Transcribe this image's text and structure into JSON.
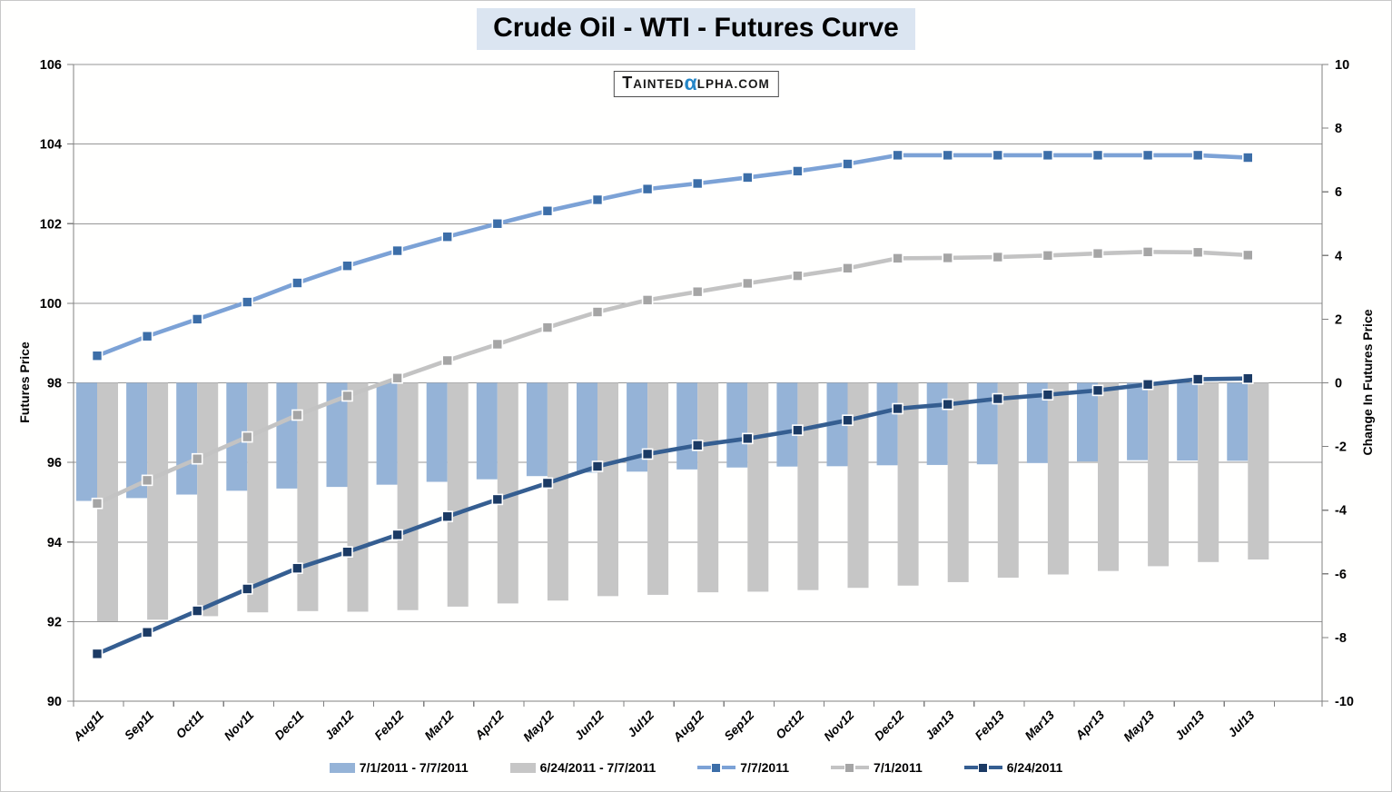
{
  "title": "Crude Oil - WTI - Futures Curve",
  "logo": {
    "lead": "T",
    "body": "AINTED",
    "alpha": "α",
    "tail": "LPHA.COM",
    "alpha_color": "#2586c7"
  },
  "chart_data": {
    "type": "combo-bar-line",
    "grid": true,
    "legend_position": "bottom",
    "categories": [
      "Aug11",
      "Sep11",
      "Oct11",
      "Nov11",
      "Dec11",
      "Jan12",
      "Feb12",
      "Mar12",
      "Apr12",
      "May12",
      "Jun12",
      "Jul12",
      "Aug12",
      "Sep12",
      "Oct12",
      "Nov12",
      "Dec12",
      "Jan13",
      "Feb13",
      "Mar13",
      "Apr13",
      "May13",
      "Jun13",
      "Jul13"
    ],
    "left_axis": {
      "label": "Futures Price",
      "min": 90,
      "max": 106,
      "step": 2,
      "ticks": [
        90,
        92,
        94,
        96,
        98,
        100,
        102,
        104,
        106
      ]
    },
    "right_axis": {
      "label": "Change In Futures Price",
      "min": -10,
      "max": 10,
      "step": 2,
      "ticks": [
        -10,
        -8,
        -6,
        -4,
        -2,
        0,
        2,
        4,
        6,
        8,
        10
      ]
    },
    "bar_series": [
      {
        "name": "7/1/2011 - 7/7/2011",
        "axis": "right",
        "color": "#95b3d7",
        "values": [
          -3.71,
          -3.62,
          -3.51,
          -3.39,
          -3.32,
          -3.27,
          -3.2,
          -3.11,
          -3.03,
          -2.93,
          -2.82,
          -2.79,
          -2.72,
          -2.66,
          -2.63,
          -2.62,
          -2.59,
          -2.58,
          -2.56,
          -2.52,
          -2.47,
          -2.43,
          -2.44,
          -2.45
        ]
      },
      {
        "name": "6/24/2011 - 7/7/2011",
        "axis": "right",
        "color": "#c6c6c6",
        "values": [
          -7.49,
          -7.44,
          -7.33,
          -7.21,
          -7.17,
          -7.19,
          -7.14,
          -7.03,
          -6.93,
          -6.84,
          -6.7,
          -6.66,
          -6.58,
          -6.56,
          -6.51,
          -6.44,
          -6.37,
          -6.26,
          -6.12,
          -6.02,
          -5.91,
          -5.76,
          -5.63,
          -5.55
        ]
      }
    ],
    "line_series": [
      {
        "name": "7/7/2011",
        "axis": "left",
        "color": "#7ca2d6",
        "marker_color": "#3c6ea8",
        "values": [
          98.68,
          99.17,
          99.6,
          100.03,
          100.51,
          100.94,
          101.32,
          101.67,
          102.0,
          102.32,
          102.6,
          102.87,
          103.01,
          103.16,
          103.32,
          103.5,
          103.72,
          103.72,
          103.72,
          103.72,
          103.72,
          103.72,
          103.72,
          103.66
        ]
      },
      {
        "name": "7/1/2011",
        "axis": "left",
        "color": "#c3c3c3",
        "marker_color": "#a5a5a5",
        "values": [
          94.97,
          95.55,
          96.09,
          96.64,
          97.19,
          97.67,
          98.12,
          98.56,
          98.97,
          99.39,
          99.78,
          100.08,
          100.29,
          100.5,
          100.69,
          100.88,
          101.13,
          101.14,
          101.16,
          101.2,
          101.25,
          101.29,
          101.28,
          101.21
        ]
      },
      {
        "name": "6/24/2011",
        "axis": "left",
        "color": "#355e91",
        "marker_color": "#1b3a64",
        "values": [
          91.19,
          91.73,
          92.27,
          92.82,
          93.34,
          93.75,
          94.18,
          94.64,
          95.07,
          95.48,
          95.9,
          96.21,
          96.43,
          96.6,
          96.81,
          97.06,
          97.35,
          97.46,
          97.6,
          97.7,
          97.81,
          97.96,
          98.09,
          98.11
        ]
      }
    ],
    "colors": {
      "gridline": "#969696",
      "axis_line": "#808080",
      "title_bg": "#dbe5f1",
      "text": "#000000"
    }
  }
}
